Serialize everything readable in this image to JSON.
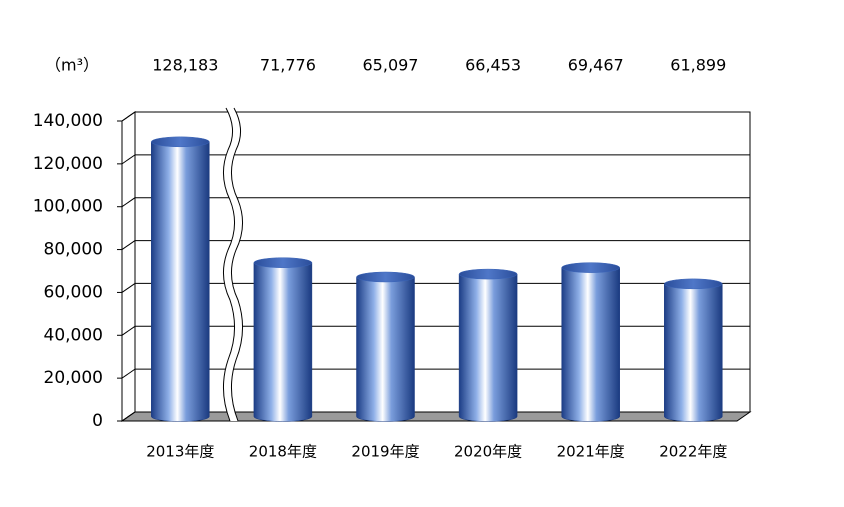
{
  "chart_data": {
    "type": "bar",
    "unit_label": "（m³）",
    "categories": [
      "2013年度",
      "2018年度",
      "2019年度",
      "2020年度",
      "2021年度",
      "2022年度"
    ],
    "values": [
      128183,
      71776,
      65097,
      66453,
      69467,
      61899
    ],
    "value_labels": [
      "128,183",
      "71,776",
      "65,097",
      "66,453",
      "69,467",
      "61,899"
    ],
    "color": "#3a64b8",
    "ylim": [
      0,
      140000
    ],
    "yticks": [
      0,
      {
        "value": 20000,
        "label": "20,000"
      },
      {
        "value": 40000,
        "label": "40,000"
      },
      {
        "value": 60000,
        "label": "60,000"
      },
      {
        "value": 80000,
        "label": "80,000"
      },
      {
        "value": 100000,
        "label": "100,000"
      },
      {
        "value": 120000,
        "label": "120,000"
      },
      {
        "value": 140000,
        "label": "140,000"
      }
    ],
    "grid": true
  }
}
